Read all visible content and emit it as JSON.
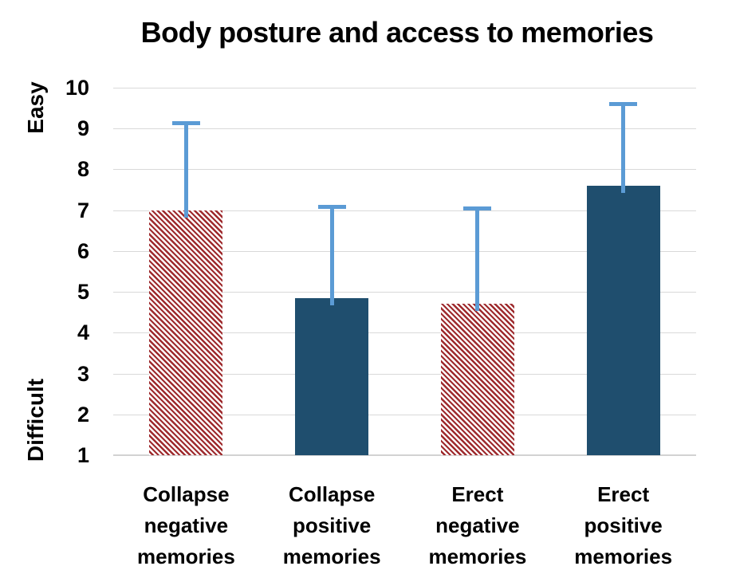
{
  "chart_data": {
    "type": "bar",
    "title": "Body posture and access to memories",
    "y_axis_top_label": "Easy",
    "y_axis_bottom_label": "Difficult",
    "ylim": [
      1,
      10
    ],
    "yticks": [
      10,
      9,
      8,
      7,
      6,
      5,
      4,
      3,
      2,
      1
    ],
    "grid": true,
    "legend": "none",
    "categories": [
      "Collapse negative memories",
      "Collapse positive memories",
      "Erect negative memories",
      "Erect positive memories"
    ],
    "category_lines": [
      [
        "Collapse",
        "negative",
        "memories"
      ],
      [
        "Collapse",
        "positive",
        "memories"
      ],
      [
        "Erect",
        "negative",
        "memories"
      ],
      [
        "Erect",
        "positive",
        "memories"
      ]
    ],
    "values": [
      7.0,
      4.85,
      4.7,
      7.6
    ],
    "error_bar_tops": [
      9.15,
      7.1,
      7.05,
      9.6
    ],
    "bar_fill_styles": [
      "hatched-diagonal-down",
      "solid",
      "hatched-diagonal-down",
      "solid"
    ],
    "colors": {
      "hatch_stripe": "#9E2A2D",
      "hatch_background": "#FFFFFF",
      "solid_bar": "#1F4E6E",
      "error_bar": "#5B9BD5",
      "gridline": "#D9D9D9",
      "axis_line": "#D2D2D2",
      "text": "#000000",
      "background": "#FFFFFF"
    }
  }
}
